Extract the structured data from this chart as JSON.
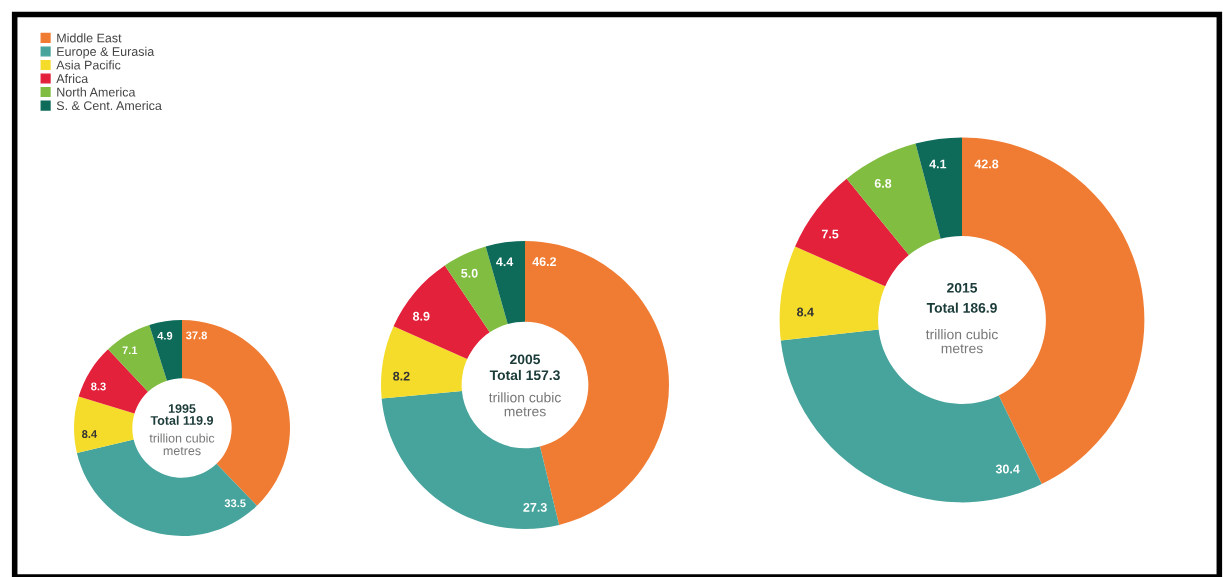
{
  "chart_data": [
    {
      "type": "donut",
      "title": "1995",
      "subtitle": "Total 119.9",
      "annotations": [
        "trillion cubic\nmetres"
      ],
      "categories": [
        "Middle East",
        "Europe & Eurasia",
        "Asia Pacific",
        "Africa",
        "North America",
        "S. & Cent. America"
      ],
      "values": [
        37.8,
        33.5,
        8.4,
        8.3,
        7.1,
        4.9
      ],
      "value_labels": [
        "37.8",
        "33.5",
        "8.4",
        "8.3",
        "7.1",
        "4.9"
      ],
      "colors": [
        "#f07c33",
        "#47a49c",
        "#f5dc2a",
        "#e3213a",
        "#80bd41",
        "#0e6b5a"
      ],
      "legend": "top left"
    },
    {
      "type": "donut",
      "title": "2005",
      "subtitle": "Total 157.3",
      "annotations": [
        "trillion cubic\nmetres"
      ],
      "categories": [
        null,
        null,
        null,
        null,
        null,
        null
      ],
      "values": [
        46.2,
        27.3,
        8.2,
        8.9,
        5.0,
        4.4
      ],
      "value_labels": [
        "46.2",
        "27.3",
        "8.2",
        "8.9",
        "5.0",
        "4.4"
      ],
      "colors": [
        "#f07c33",
        "#47a49c",
        "#f5dc2a",
        "#e3213a",
        "#80bd41",
        "#0e6b5a"
      ]
    },
    {
      "type": "donut",
      "title": "2015",
      "subtitle": "Total 186.9",
      "annotations": [
        "trillion cubic\nmetres"
      ],
      "categories": [
        null,
        null,
        null,
        null,
        null,
        null
      ],
      "values": [
        42.8,
        30.4,
        8.4,
        7.5,
        6.8,
        4.1
      ],
      "value_labels": [
        "42.8",
        "30.4",
        "8.4",
        "7.5",
        "6.8",
        "4.1"
      ],
      "colors": [
        "#f07c33",
        "#47a49c",
        "#f5dc2a",
        "#e3213a",
        "#80bd41",
        "#0e6b5a"
      ]
    }
  ]
}
